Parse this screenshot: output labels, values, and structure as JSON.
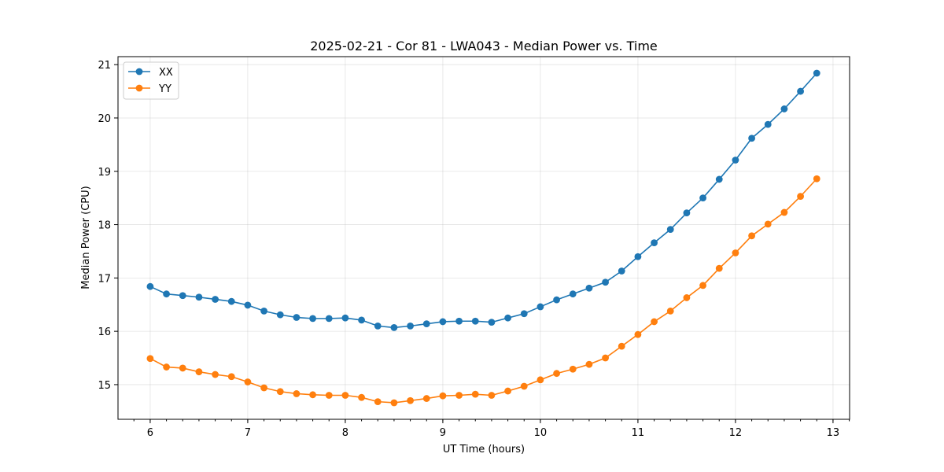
{
  "chart_data": {
    "type": "line",
    "title": "2025-02-21 - Cor 81 - LWA043 - Median Power vs. Time",
    "xlabel": "UT Time (hours)",
    "ylabel": "Median Power (CPU)",
    "xlim": [
      5.67,
      13.17
    ],
    "ylim": [
      14.35,
      21.15
    ],
    "xticks": [
      6,
      7,
      8,
      9,
      10,
      11,
      12,
      13
    ],
    "yticks": [
      15,
      16,
      17,
      18,
      19,
      20,
      21
    ],
    "grid": true,
    "legend_position": "top-left",
    "x": [
      6.0,
      6.1667,
      6.3333,
      6.5,
      6.6667,
      6.8333,
      7.0,
      7.1667,
      7.3333,
      7.5,
      7.6667,
      7.8333,
      8.0,
      8.1667,
      8.3333,
      8.5,
      8.6667,
      8.8333,
      9.0,
      9.1667,
      9.3333,
      9.5,
      9.6667,
      9.8333,
      10.0,
      10.1667,
      10.3333,
      10.5,
      10.6667,
      10.8333,
      11.0,
      11.1667,
      11.3333,
      11.5,
      11.6667,
      11.8333,
      12.0,
      12.1667,
      12.3333,
      12.5,
      12.6667,
      12.8333
    ],
    "series": [
      {
        "name": "XX",
        "color": "#1f77b4",
        "values": [
          16.84,
          16.7,
          16.67,
          16.64,
          16.6,
          16.56,
          16.49,
          16.38,
          16.31,
          16.26,
          16.24,
          16.24,
          16.25,
          16.21,
          16.1,
          16.07,
          16.1,
          16.14,
          16.18,
          16.19,
          16.19,
          16.17,
          16.25,
          16.33,
          16.46,
          16.59,
          16.7,
          16.81,
          16.92,
          17.13,
          17.4,
          17.66,
          17.91,
          18.22,
          18.5,
          18.85,
          19.21,
          19.62,
          19.88,
          20.17,
          20.5,
          20.84
        ]
      },
      {
        "name": "YY",
        "color": "#ff7f0e",
        "values": [
          15.49,
          15.33,
          15.31,
          15.24,
          15.19,
          15.15,
          15.05,
          14.94,
          14.87,
          14.83,
          14.81,
          14.8,
          14.8,
          14.76,
          14.68,
          14.66,
          14.7,
          14.74,
          14.79,
          14.8,
          14.82,
          14.8,
          14.88,
          14.97,
          15.09,
          15.21,
          15.29,
          15.38,
          15.5,
          15.72,
          15.94,
          16.18,
          16.38,
          16.63,
          16.86,
          17.18,
          17.47,
          17.79,
          18.01,
          18.23,
          18.53,
          18.86
        ]
      }
    ]
  }
}
